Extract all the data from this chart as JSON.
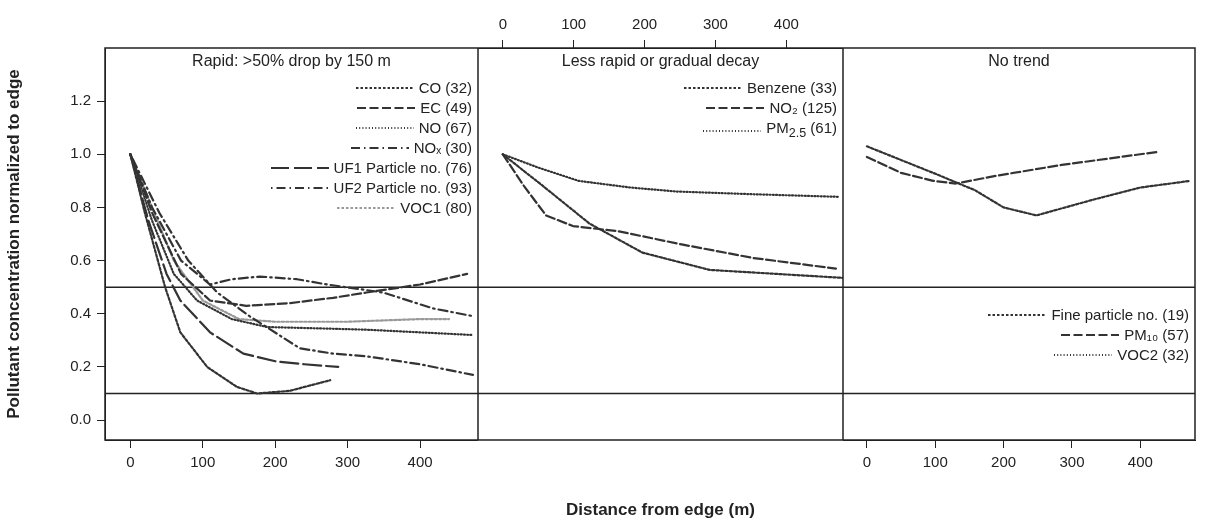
{
  "chart_data": [
    {
      "type": "line",
      "title": "Rapid: >50% drop by 150 m",
      "ylabel": "Pollutant concentration normalized to edge",
      "xlim": [
        -35,
        480
      ],
      "xticks": [
        0,
        100,
        200,
        300,
        400
      ],
      "ylim": [
        -0.075,
        1.4
      ],
      "yticks": [
        {
          "value": 0,
          "label": "0.0"
        },
        0.2,
        0.4,
        0.6,
        0.8,
        {
          "value": 1,
          "label": "1.0"
        },
        1.2
      ],
      "legend": "top right",
      "ref_lines": [
        {
          "axis": "y",
          "value": 0.5
        },
        {
          "axis": "y",
          "value": 0.1
        }
      ],
      "series": [
        {
          "name": "CO (32)",
          "color": "#333333",
          "line_style": "shortdash",
          "x": [
            0,
            20,
            48,
            69,
            106,
            147,
            175,
            220,
            276
          ],
          "values": [
            1,
            0.78,
            0.5,
            0.33,
            0.2,
            0.125,
            0.1,
            0.11,
            0.15
          ]
        },
        {
          "name": "EC (49)",
          "color": "#333333",
          "line_style": "dashed",
          "x": [
            0,
            30,
            70,
            110,
            160,
            220,
            280,
            326,
            400,
            465
          ],
          "values": [
            1,
            0.78,
            0.55,
            0.45,
            0.43,
            0.44,
            0.46,
            0.48,
            0.51,
            0.55
          ]
        },
        {
          "name": "NO (67)",
          "color": "#333333",
          "line_style": "dotted",
          "x": [
            0,
            30,
            60,
            92,
            140,
            189,
            260,
            326,
            400,
            473
          ],
          "values": [
            1,
            0.75,
            0.55,
            0.45,
            0.38,
            0.35,
            0.345,
            0.34,
            0.33,
            0.32
          ]
        },
        {
          "name": "NOₓ (30)",
          "color": "#333333",
          "line_style": "dashdot",
          "x": [
            0,
            30,
            70,
            110,
            140,
            179,
            230,
            272,
            349,
            418,
            475
          ],
          "values": [
            1,
            0.8,
            0.6,
            0.51,
            0.53,
            0.54,
            0.53,
            0.51,
            0.48,
            0.42,
            0.39
          ]
        },
        {
          "name": "UF1 Particle no. (76)",
          "color": "#333333",
          "line_style": "longdash",
          "x": [
            0,
            25,
            50,
            69,
            110,
            156,
            202,
            240,
            287
          ],
          "values": [
            1,
            0.75,
            0.55,
            0.45,
            0.33,
            0.25,
            0.22,
            0.21,
            0.2
          ]
        },
        {
          "name": "UF2 Particle no. (93)",
          "color": "#333333",
          "line_style": "dotdash",
          "x": [
            0,
            40,
            80,
            120,
            165,
            234,
            280,
            326,
            400,
            473
          ],
          "values": [
            1,
            0.78,
            0.6,
            0.48,
            0.39,
            0.27,
            0.25,
            0.24,
            0.21,
            0.17
          ]
        },
        {
          "name": "VOC1 (80)",
          "color": "#999999",
          "line_style": "shortdash",
          "x": [
            0,
            30,
            60,
            100,
            150,
            200,
            300,
            400,
            440
          ],
          "values": [
            1,
            0.8,
            0.6,
            0.45,
            0.38,
            0.37,
            0.37,
            0.38,
            0.38
          ]
        }
      ]
    },
    {
      "type": "line",
      "title": "Less rapid or gradual decay",
      "xlabel": "Distance from edge (m)",
      "xlim": [
        -35,
        480
      ],
      "xticks": [
        0,
        100,
        200,
        300,
        400
      ],
      "ylim": [
        -0.075,
        1.4
      ],
      "tick_labels": "x",
      "legend": "top right",
      "ref_lines": [
        {
          "axis": "y",
          "value": 0.5
        },
        {
          "axis": "y",
          "value": 0.1
        }
      ],
      "series": [
        {
          "name": "Benzene (33)",
          "color": "#333333",
          "line_style": "shortdash",
          "x": [
            0,
            57,
            122,
            197,
            292,
            386,
            480
          ],
          "values": [
            1,
            0.88,
            0.74,
            0.63,
            0.565,
            0.55,
            0.535
          ]
        },
        {
          "name": "NO₂ (125)",
          "color": "#333333",
          "line_style": "dashed",
          "x": [
            0,
            30,
            61,
            99,
            164,
            254,
            353,
            470
          ],
          "values": [
            1,
            0.88,
            0.77,
            0.73,
            0.71,
            0.66,
            0.61,
            0.57
          ]
        },
        {
          "name": "PM$_{2.5}$ (61)",
          "color": "#333333",
          "line_style": "dotted",
          "x": [
            0,
            50,
            107,
            180,
            245,
            350,
            473
          ],
          "values": [
            1,
            0.95,
            0.9,
            0.875,
            0.86,
            0.85,
            0.84
          ]
        }
      ]
    },
    {
      "type": "line",
      "title": "No trend",
      "xlim": [
        -35,
        480
      ],
      "xticks": [
        0,
        100,
        200,
        300,
        400
      ],
      "ylim": [
        -0.075,
        1.4
      ],
      "tick_labels": "x",
      "legend": "bottom right",
      "ref_lines": [
        {
          "axis": "y",
          "value": 0.5
        },
        {
          "axis": "y",
          "value": 0.1
        }
      ],
      "series": [
        {
          "name": "Fine particle no. (19)",
          "color": "#333333",
          "line_style": "shortdash",
          "x": [
            0,
            97,
            158,
            200,
            248,
            332,
            400,
            473
          ],
          "values": [
            1.03,
            0.93,
            0.865,
            0.8,
            0.77,
            0.83,
            0.875,
            0.9
          ]
        },
        {
          "name": "PM₁₀ (57)",
          "color": "#333333",
          "line_style": "dashed",
          "x": [
            0,
            50,
            97,
            130,
            191,
            285,
            428
          ],
          "values": [
            0.99,
            0.93,
            0.9,
            0.89,
            0.92,
            0.96,
            1.01
          ]
        },
        {
          "name": "VOC2 (32)",
          "color": "#333333",
          "line_style": "dotted"
        }
      ]
    }
  ]
}
